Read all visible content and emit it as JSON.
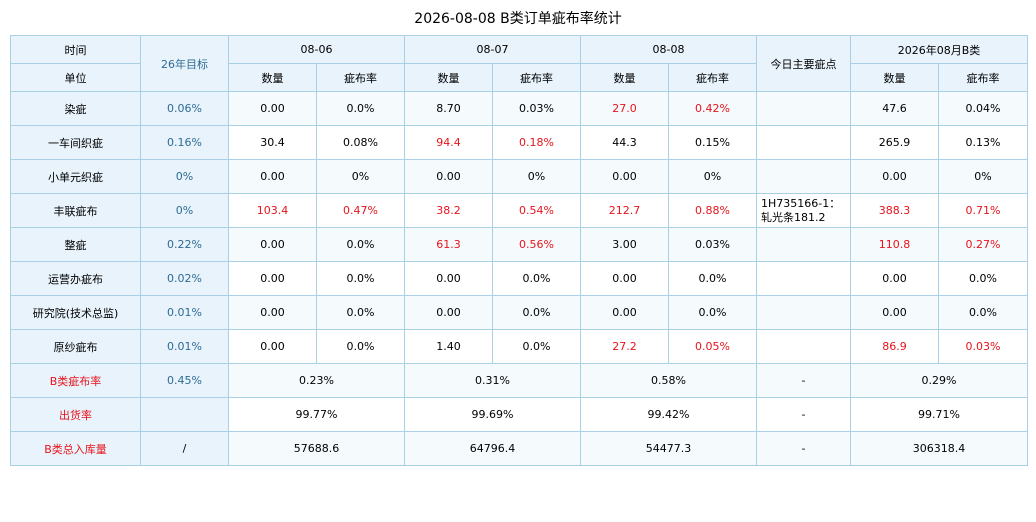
{
  "title": "2026-08-08 B类订单疵布率统计",
  "header": {
    "time_label": "时间",
    "unit_label": "单位",
    "target_label": "26年目标",
    "dates": [
      "08-06",
      "08-07",
      "08-08"
    ],
    "points_label": "今日主要疵点",
    "month_label": "2026年08月B类",
    "qty_label": "数量",
    "rate_label": "疵布率"
  },
  "rows": [
    {
      "name": "染疵",
      "target": "0.06%",
      "cells": [
        {
          "v": "0.00",
          "red": false
        },
        {
          "v": "0.0%",
          "red": false
        },
        {
          "v": "8.70",
          "red": false
        },
        {
          "v": "0.03%",
          "red": false
        },
        {
          "v": "27.0",
          "red": true
        },
        {
          "v": "0.42%",
          "red": true
        }
      ],
      "points": "",
      "month": [
        {
          "v": "47.6",
          "red": false
        },
        {
          "v": "0.04%",
          "red": false
        }
      ]
    },
    {
      "name": "一车间织疵",
      "target": "0.16%",
      "cells": [
        {
          "v": "30.4",
          "red": false
        },
        {
          "v": "0.08%",
          "red": false
        },
        {
          "v": "94.4",
          "red": true
        },
        {
          "v": "0.18%",
          "red": true
        },
        {
          "v": "44.3",
          "red": false
        },
        {
          "v": "0.15%",
          "red": false
        }
      ],
      "points": "",
      "month": [
        {
          "v": "265.9",
          "red": false
        },
        {
          "v": "0.13%",
          "red": false
        }
      ]
    },
    {
      "name": "小单元织疵",
      "target": "0%",
      "cells": [
        {
          "v": "0.00",
          "red": false
        },
        {
          "v": "0%",
          "red": false
        },
        {
          "v": "0.00",
          "red": false
        },
        {
          "v": "0%",
          "red": false
        },
        {
          "v": "0.00",
          "red": false
        },
        {
          "v": "0%",
          "red": false
        }
      ],
      "points": "",
      "month": [
        {
          "v": "0.00",
          "red": false
        },
        {
          "v": "0%",
          "red": false
        }
      ]
    },
    {
      "name": "丰联疵布",
      "target": "0%",
      "cells": [
        {
          "v": "103.4",
          "red": true
        },
        {
          "v": "0.47%",
          "red": true
        },
        {
          "v": "38.2",
          "red": true
        },
        {
          "v": "0.54%",
          "red": true
        },
        {
          "v": "212.7",
          "red": true
        },
        {
          "v": "0.88%",
          "red": true
        }
      ],
      "points": "1H735166-1：轧光条181.2",
      "month": [
        {
          "v": "388.3",
          "red": true
        },
        {
          "v": "0.71%",
          "red": true
        }
      ]
    },
    {
      "name": "整疵",
      "target": "0.22%",
      "cells": [
        {
          "v": "0.00",
          "red": false
        },
        {
          "v": "0.0%",
          "red": false
        },
        {
          "v": "61.3",
          "red": true
        },
        {
          "v": "0.56%",
          "red": true
        },
        {
          "v": "3.00",
          "red": false
        },
        {
          "v": "0.03%",
          "red": false
        }
      ],
      "points": "",
      "month": [
        {
          "v": "110.8",
          "red": true
        },
        {
          "v": "0.27%",
          "red": true
        }
      ]
    },
    {
      "name": "运营办疵布",
      "target": "0.02%",
      "cells": [
        {
          "v": "0.00",
          "red": false
        },
        {
          "v": "0.0%",
          "red": false
        },
        {
          "v": "0.00",
          "red": false
        },
        {
          "v": "0.0%",
          "red": false
        },
        {
          "v": "0.00",
          "red": false
        },
        {
          "v": "0.0%",
          "red": false
        }
      ],
      "points": "",
      "month": [
        {
          "v": "0.00",
          "red": false
        },
        {
          "v": "0.0%",
          "red": false
        }
      ]
    },
    {
      "name": "研究院(技术总监)",
      "target": "0.01%",
      "cells": [
        {
          "v": "0.00",
          "red": false
        },
        {
          "v": "0.0%",
          "red": false
        },
        {
          "v": "0.00",
          "red": false
        },
        {
          "v": "0.0%",
          "red": false
        },
        {
          "v": "0.00",
          "red": false
        },
        {
          "v": "0.0%",
          "red": false
        }
      ],
      "points": "",
      "month": [
        {
          "v": "0.00",
          "red": false
        },
        {
          "v": "0.0%",
          "red": false
        }
      ]
    },
    {
      "name": "原纱疵布",
      "target": "0.01%",
      "cells": [
        {
          "v": "0.00",
          "red": false
        },
        {
          "v": "0.0%",
          "red": false
        },
        {
          "v": "1.40",
          "red": false
        },
        {
          "v": "0.0%",
          "red": false
        },
        {
          "v": "27.2",
          "red": true
        },
        {
          "v": "0.05%",
          "red": true
        }
      ],
      "points": "",
      "month": [
        {
          "v": "86.9",
          "red": true
        },
        {
          "v": "0.03%",
          "red": true
        }
      ]
    }
  ],
  "summary": {
    "rate": {
      "label": "B类疵布率",
      "target": "0.45%",
      "days": [
        "0.23%",
        "0.31%",
        "0.58%"
      ],
      "points": "-",
      "month": "0.29%"
    },
    "ship": {
      "label": "出货率",
      "target": "",
      "days": [
        "99.77%",
        "99.69%",
        "99.42%"
      ],
      "points": "-",
      "month": "99.71%"
    },
    "stock": {
      "label": "B类总入库量",
      "target": "/",
      "days": [
        "57688.6",
        "64796.4",
        "54477.3"
      ],
      "points": "-",
      "month": "306318.4"
    }
  },
  "colors": {
    "red": "#e8131b",
    "header_bg": "#e8f3fc",
    "border": "#a9d0e6",
    "total_bg": "#fff6cc",
    "target_text": "#2e6b94"
  }
}
